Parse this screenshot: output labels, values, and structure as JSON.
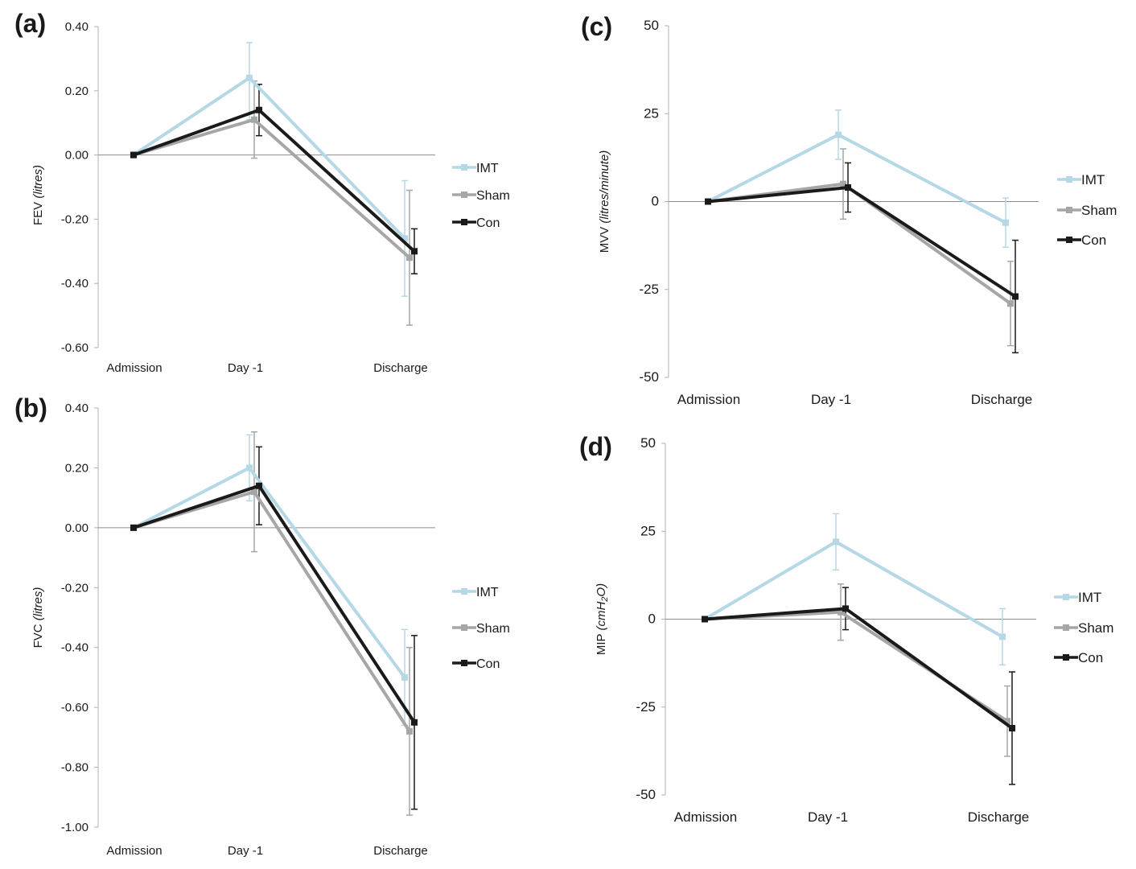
{
  "colors": {
    "IMT": "#b5d8e6",
    "Sham": "#a6a6a6",
    "Con": "#1a1a1a",
    "axis": "#9a9a9a",
    "zero_line": "#8c8c8c"
  },
  "chart_data": [
    {
      "panel": "(a)",
      "type": "line",
      "title": "",
      "ylabel": "FEV",
      "ylabel_unit": "(litres)",
      "xlabel": "",
      "categories": [
        "Admission",
        "Day -1",
        "Discharge"
      ],
      "ylim": [
        -0.6,
        0.4
      ],
      "yticks": [
        0.4,
        0.2,
        0.0,
        -0.2,
        -0.4,
        -0.6
      ],
      "ytick_labels": [
        "0.40",
        "0.20",
        "0.00",
        "-0.20",
        "-0.40",
        "-0.60"
      ],
      "legend_position": "right",
      "series": [
        {
          "name": "IMT",
          "values": [
            0.0,
            0.24,
            -0.26
          ],
          "err_low": [
            0,
            0.13,
            0.18
          ],
          "err_high": [
            0,
            0.11,
            0.18
          ]
        },
        {
          "name": "Sham",
          "values": [
            0.0,
            0.11,
            -0.32
          ],
          "err_low": [
            0,
            0.12,
            0.21
          ],
          "err_high": [
            0,
            0.12,
            0.21
          ]
        },
        {
          "name": "Con",
          "values": [
            0.0,
            0.14,
            -0.3
          ],
          "err_low": [
            0,
            0.08,
            0.07
          ],
          "err_high": [
            0,
            0.08,
            0.07
          ]
        }
      ]
    },
    {
      "panel": "(b)",
      "type": "line",
      "title": "",
      "ylabel": "FVC",
      "ylabel_unit": "(litres)",
      "xlabel": "",
      "categories": [
        "Admission",
        "Day -1",
        "Discharge"
      ],
      "ylim": [
        -1.0,
        0.4
      ],
      "yticks": [
        0.4,
        0.2,
        0.0,
        -0.2,
        -0.4,
        -0.6,
        -0.8,
        -1.0
      ],
      "ytick_labels": [
        "0.40",
        "0.20",
        "0.00",
        "-0.20",
        "-0.40",
        "-0.60",
        "-0.80",
        "-1.00"
      ],
      "legend_position": "right",
      "series": [
        {
          "name": "IMT",
          "values": [
            0.0,
            0.2,
            -0.5
          ],
          "err_low": [
            0,
            0.11,
            0.16
          ],
          "err_high": [
            0,
            0.11,
            0.16
          ]
        },
        {
          "name": "Sham",
          "values": [
            0.0,
            0.12,
            -0.68
          ],
          "err_low": [
            0,
            0.2,
            0.28
          ],
          "err_high": [
            0,
            0.2,
            0.28
          ]
        },
        {
          "name": "Con",
          "values": [
            0.0,
            0.14,
            -0.65
          ],
          "err_low": [
            0,
            0.13,
            0.29
          ],
          "err_high": [
            0,
            0.13,
            0.29
          ]
        }
      ]
    },
    {
      "panel": "(c)",
      "type": "line",
      "title": "",
      "ylabel": "MVV",
      "ylabel_unit": "(litres/minute)",
      "xlabel": "",
      "categories": [
        "Admission",
        "Day -1",
        "Discharge"
      ],
      "ylim": [
        -50,
        50
      ],
      "yticks": [
        50,
        25,
        0,
        -25,
        -50
      ],
      "ytick_labels": [
        "50",
        "25",
        "0",
        "-25",
        "-50"
      ],
      "legend_position": "right",
      "series": [
        {
          "name": "IMT",
          "values": [
            0,
            19,
            -6
          ],
          "err_low": [
            0,
            7,
            7
          ],
          "err_high": [
            0,
            7,
            7
          ]
        },
        {
          "name": "Sham",
          "values": [
            0,
            5,
            -29
          ],
          "err_low": [
            0,
            10,
            12
          ],
          "err_high": [
            0,
            10,
            12
          ]
        },
        {
          "name": "Con",
          "values": [
            0,
            4,
            -27
          ],
          "err_low": [
            0,
            7,
            16
          ],
          "err_high": [
            0,
            7,
            16
          ]
        }
      ]
    },
    {
      "panel": "(d)",
      "type": "line",
      "title": "",
      "ylabel": "MIP",
      "ylabel_unit": "(cmH2O)",
      "xlabel": "",
      "categories": [
        "Admission",
        "Day -1",
        "Discharge"
      ],
      "ylim": [
        -50,
        50
      ],
      "yticks": [
        50,
        25,
        0,
        -25,
        -50
      ],
      "ytick_labels": [
        "50",
        "25",
        "0",
        "-25",
        "-50"
      ],
      "legend_position": "right",
      "series": [
        {
          "name": "IMT",
          "values": [
            0,
            22,
            -5
          ],
          "err_low": [
            0,
            8,
            8
          ],
          "err_high": [
            0,
            8,
            8
          ]
        },
        {
          "name": "Sham",
          "values": [
            0,
            2,
            -29
          ],
          "err_low": [
            0,
            8,
            10
          ],
          "err_high": [
            0,
            8,
            10
          ]
        },
        {
          "name": "Con",
          "values": [
            0,
            3,
            -31
          ],
          "err_low": [
            0,
            6,
            16
          ],
          "err_high": [
            0,
            6,
            16
          ]
        }
      ]
    }
  ]
}
